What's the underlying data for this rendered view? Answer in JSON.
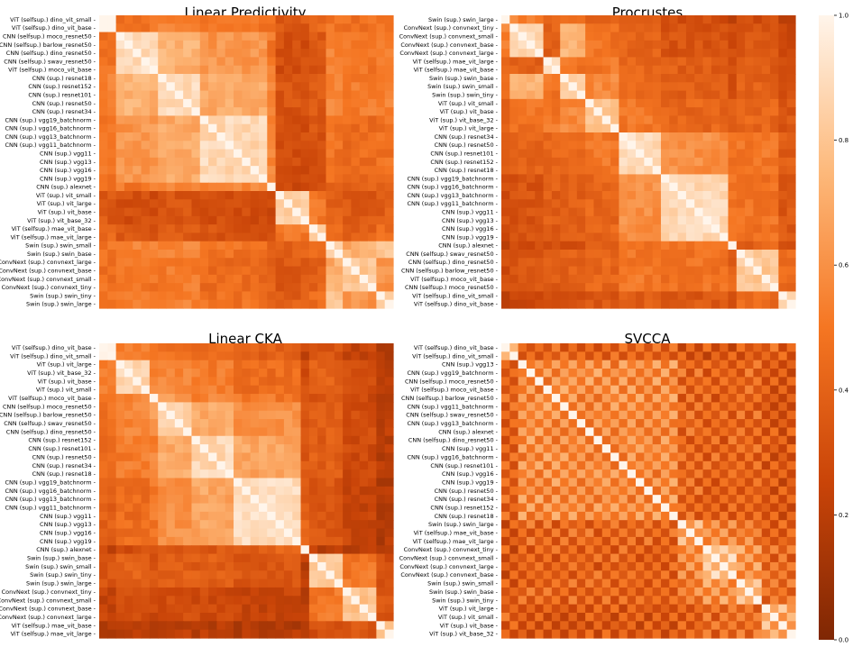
{
  "chart_data": [
    {
      "type": "heatmap",
      "title": "Linear Predictivity",
      "row_labels": [
        "ViT (selfsup.) dino_vit_small",
        "ViT (selfsup.) dino_vit_base",
        "CNN (selfsup.) moco_resnet50",
        "CNN (selfsup.) barlow_resnet50",
        "CNN (selfsup.) dino_resnet50",
        "CNN (selfsup.) swav_resnet50",
        "ViT (selfsup.) moco_vit_base",
        "CNN (sup.) resnet18",
        "CNN (sup.) resnet152",
        "CNN (sup.) resnet101",
        "CNN (sup.) resnet50",
        "CNN (sup.) resnet34",
        "CNN (sup.) vgg19_batchnorm",
        "CNN (sup.) vgg16_batchnorm",
        "CNN (sup.) vgg13_batchnorm",
        "CNN (sup.) vgg11_batchnorm",
        "CNN (sup.) vgg11",
        "CNN (sup.) vgg13",
        "CNN (sup.) vgg16",
        "CNN (sup.) vgg19",
        "CNN (sup.) alexnet",
        "ViT (sup.) vit_small",
        "ViT (sup.) vit_large",
        "ViT (sup.) vit_base",
        "ViT (sup.) vit_base_32",
        "ViT (selfsup.) mae_vit_base",
        "ViT (selfsup.) mae_vit_large",
        "Swin (sup.) swin_small",
        "Swin (sup.) swin_base",
        "ConvNext (sup.) convnext_large",
        "ConvNext (sup.) convnext_base",
        "ConvNext (sup.) convnext_small",
        "ConvNext (sup.) convnext_tiny",
        "Swin (sup.) swin_tiny",
        "Swin (sup.) swin_large"
      ],
      "groups": [
        2,
        5,
        5,
        8,
        1,
        4,
        2,
        2,
        4,
        2
      ],
      "group_values": [
        [
          0.97,
          0.48,
          0.55,
          0.5,
          0.46,
          0.36,
          0.45,
          0.5,
          0.48,
          0.52
        ],
        [
          0.48,
          0.9,
          0.72,
          0.62,
          0.5,
          0.3,
          0.35,
          0.55,
          0.5,
          0.55
        ],
        [
          0.55,
          0.72,
          0.9,
          0.7,
          0.55,
          0.33,
          0.37,
          0.55,
          0.52,
          0.55
        ],
        [
          0.5,
          0.62,
          0.7,
          0.88,
          0.55,
          0.3,
          0.33,
          0.48,
          0.45,
          0.48
        ],
        [
          0.46,
          0.5,
          0.55,
          0.55,
          1.0,
          0.28,
          0.3,
          0.42,
          0.4,
          0.42
        ],
        [
          0.36,
          0.3,
          0.33,
          0.3,
          0.28,
          0.82,
          0.5,
          0.4,
          0.35,
          0.38
        ],
        [
          0.45,
          0.35,
          0.37,
          0.33,
          0.3,
          0.5,
          0.85,
          0.45,
          0.4,
          0.45
        ],
        [
          0.5,
          0.55,
          0.55,
          0.48,
          0.42,
          0.4,
          0.45,
          0.88,
          0.7,
          0.8
        ],
        [
          0.48,
          0.5,
          0.52,
          0.45,
          0.4,
          0.35,
          0.4,
          0.7,
          0.8,
          0.62
        ],
        [
          0.52,
          0.55,
          0.55,
          0.48,
          0.42,
          0.38,
          0.45,
          0.8,
          0.62,
          0.85
        ]
      ],
      "colorbar": {
        "min": 0.0,
        "max": 1.0,
        "ticks": [
          "0.0",
          "0.2",
          "0.4",
          "0.6",
          "0.8",
          "1.0"
        ]
      }
    },
    {
      "type": "heatmap",
      "title": "Procrustes",
      "row_labels": [
        "Swin (sup.) swin_large",
        "ConvNext (sup.) convnext_tiny",
        "ConvNext (sup.) convnext_small",
        "ConvNext (sup.) convnext_base",
        "ConvNext (sup.) convnext_large",
        "ViT (selfsup.) mae_vit_large",
        "ViT (selfsup.) mae_vit_base",
        "Swin (sup.) swin_base",
        "Swin (sup.) swin_small",
        "Swin (sup.) swin_tiny",
        "ViT (sup.) vit_small",
        "ViT (sup.) vit_base",
        "ViT (sup.) vit_base_32",
        "ViT (sup.) vit_large",
        "CNN (sup.) resnet34",
        "CNN (sup.) resnet50",
        "CNN (sup.) resnet101",
        "CNN (sup.) resnet152",
        "CNN (sup.) resnet18",
        "CNN (sup.) vgg19_batchnorm",
        "CNN (sup.) vgg16_batchnorm",
        "CNN (sup.) vgg13_batchnorm",
        "CNN (sup.) vgg11_batchnorm",
        "CNN (sup.) vgg11",
        "CNN (sup.) vgg13",
        "CNN (sup.) vgg16",
        "CNN (sup.) vgg19",
        "CNN (sup.) alexnet",
        "CNN (selfsup.) swav_resnet50",
        "CNN (selfsup.) dino_resnet50",
        "CNN (selfsup.) barlow_resnet50",
        "ViT (selfsup.) moco_vit_base",
        "CNN (selfsup.) moco_resnet50",
        "ViT (selfsup.) dino_vit_small",
        "ViT (selfsup.) dino_vit_base"
      ],
      "groups": [
        1,
        4,
        2,
        3,
        4,
        5,
        8,
        1,
        5,
        2
      ],
      "group_values": [
        [
          1.0,
          0.55,
          0.4,
          0.5,
          0.42,
          0.35,
          0.3,
          0.25,
          0.3,
          0.25
        ],
        [
          0.55,
          0.88,
          0.4,
          0.72,
          0.48,
          0.4,
          0.33,
          0.28,
          0.35,
          0.28
        ],
        [
          0.4,
          0.4,
          0.85,
          0.48,
          0.5,
          0.42,
          0.38,
          0.3,
          0.38,
          0.32
        ],
        [
          0.5,
          0.72,
          0.48,
          0.85,
          0.58,
          0.45,
          0.38,
          0.3,
          0.4,
          0.33
        ],
        [
          0.42,
          0.48,
          0.5,
          0.58,
          0.82,
          0.5,
          0.42,
          0.35,
          0.42,
          0.35
        ],
        [
          0.35,
          0.4,
          0.42,
          0.45,
          0.5,
          0.9,
          0.6,
          0.45,
          0.5,
          0.38
        ],
        [
          0.3,
          0.33,
          0.38,
          0.38,
          0.42,
          0.6,
          0.88,
          0.5,
          0.48,
          0.35
        ],
        [
          0.25,
          0.28,
          0.3,
          0.3,
          0.35,
          0.45,
          0.5,
          1.0,
          0.4,
          0.28
        ],
        [
          0.3,
          0.35,
          0.38,
          0.4,
          0.42,
          0.5,
          0.48,
          0.4,
          0.8,
          0.45
        ],
        [
          0.25,
          0.28,
          0.32,
          0.33,
          0.35,
          0.38,
          0.35,
          0.28,
          0.45,
          0.88
        ]
      ]
    },
    {
      "type": "heatmap",
      "title": "Linear CKA",
      "row_labels": [
        "ViT (selfsup.) dino_vit_base",
        "ViT (selfsup.) dino_vit_small",
        "ViT (sup.) vit_large",
        "ViT (sup.) vit_base_32",
        "ViT (sup.) vit_base",
        "ViT (sup.) vit_small",
        "ViT (selfsup.) moco_vit_base",
        "CNN (selfsup.) moco_resnet50",
        "CNN (selfsup.) barlow_resnet50",
        "CNN (selfsup.) swav_resnet50",
        "CNN (selfsup.) dino_resnet50",
        "CNN (sup.) resnet152",
        "CNN (sup.) resnet101",
        "CNN (sup.) resnet50",
        "CNN (sup.) resnet34",
        "CNN (sup.) resnet18",
        "CNN (sup.) vgg19_batchnorm",
        "CNN (sup.) vgg16_batchnorm",
        "CNN (sup.) vgg13_batchnorm",
        "CNN (sup.) vgg11_batchnorm",
        "CNN (sup.) vgg11",
        "CNN (sup.) vgg13",
        "CNN (sup.) vgg16",
        "CNN (sup.) vgg19",
        "CNN (sup.) alexnet",
        "Swin (sup.) swin_base",
        "Swin (sup.) swin_small",
        "Swin (sup.) swin_tiny",
        "Swin (sup.) swin_large",
        "ConvNext (sup.) convnext_tiny",
        "ConvNext (sup.) convnext_small",
        "ConvNext (sup.) convnext_base",
        "ConvNext (sup.) convnext_large",
        "ViT (selfsup.) mae_vit_base",
        "ViT (selfsup.) mae_vit_large"
      ],
      "groups": [
        2,
        4,
        1,
        4,
        5,
        8,
        1,
        4,
        4,
        2
      ],
      "group_values": [
        [
          0.95,
          0.55,
          0.45,
          0.48,
          0.45,
          0.4,
          0.25,
          0.35,
          0.25,
          0.2
        ],
        [
          0.55,
          0.88,
          0.55,
          0.55,
          0.52,
          0.45,
          0.3,
          0.4,
          0.3,
          0.22
        ],
        [
          0.45,
          0.55,
          1.0,
          0.65,
          0.55,
          0.5,
          0.3,
          0.35,
          0.28,
          0.2
        ],
        [
          0.48,
          0.55,
          0.65,
          0.88,
          0.7,
          0.6,
          0.35,
          0.38,
          0.3,
          0.22
        ],
        [
          0.45,
          0.52,
          0.55,
          0.7,
          0.88,
          0.68,
          0.35,
          0.38,
          0.28,
          0.2
        ],
        [
          0.4,
          0.45,
          0.5,
          0.6,
          0.68,
          0.9,
          0.4,
          0.35,
          0.25,
          0.18
        ],
        [
          0.25,
          0.3,
          0.3,
          0.35,
          0.35,
          0.4,
          1.0,
          0.2,
          0.18,
          0.15
        ],
        [
          0.35,
          0.4,
          0.35,
          0.38,
          0.38,
          0.35,
          0.2,
          0.82,
          0.5,
          0.3
        ],
        [
          0.25,
          0.3,
          0.28,
          0.3,
          0.28,
          0.25,
          0.18,
          0.5,
          0.78,
          0.35
        ],
        [
          0.2,
          0.22,
          0.2,
          0.22,
          0.2,
          0.18,
          0.15,
          0.3,
          0.35,
          0.8
        ]
      ]
    },
    {
      "type": "heatmap",
      "title": "SVCCA",
      "row_labels": [
        "ViT (selfsup.) dino_vit_base",
        "ViT (selfsup.) dino_vit_small",
        "CNN (sup.) vgg13",
        "CNN (sup.) vgg19_batchnorm",
        "CNN (selfsup.) moco_resnet50",
        "ViT (selfsup.) moco_vit_base",
        "CNN (selfsup.) barlow_resnet50",
        "CNN (sup.) vgg11_batchnorm",
        "CNN (selfsup.) swav_resnet50",
        "CNN (sup.) vgg13_batchnorm",
        "CNN (sup.) alexnet",
        "CNN (selfsup.) dino_resnet50",
        "CNN (sup.) vgg11",
        "CNN (sup.) vgg16_batchnorm",
        "CNN (sup.) resnet101",
        "CNN (sup.) vgg16",
        "CNN (sup.) vgg19",
        "CNN (sup.) resnet50",
        "CNN (sup.) resnet34",
        "CNN (sup.) resnet152",
        "CNN (sup.) resnet18",
        "Swin (sup.) swin_large",
        "ViT (selfsup.) mae_vit_base",
        "ViT (selfsup.) mae_vit_large",
        "ConvNext (sup.) convnext_tiny",
        "ConvNext (sup.) convnext_small",
        "ConvNext (sup.) convnext_large",
        "ConvNext (sup.) convnext_base",
        "Swin (sup.) swin_small",
        "Swin (sup.) swin_base",
        "Swin (sup.) swin_tiny",
        "ViT (sup.) vit_large",
        "ViT (sup.) vit_small",
        "ViT (sup.) vit_base",
        "ViT (sup.) vit_base_32"
      ],
      "groups": [
        2,
        19,
        3,
        4,
        3,
        4
      ],
      "group_values": [
        [
          0.8,
          0.4,
          0.35,
          0.35,
          0.38,
          0.4
        ],
        [
          0.4,
          0.58,
          0.42,
          0.4,
          0.42,
          0.35
        ],
        [
          0.35,
          0.42,
          0.7,
          0.55,
          0.52,
          0.4
        ],
        [
          0.35,
          0.4,
          0.55,
          0.82,
          0.62,
          0.42
        ],
        [
          0.38,
          0.42,
          0.52,
          0.62,
          0.75,
          0.45
        ],
        [
          0.4,
          0.35,
          0.4,
          0.42,
          0.45,
          0.72
        ]
      ]
    }
  ],
  "colors": {
    "low": "#7f2704",
    "mid": "#f57622",
    "high": "#fff5eb"
  }
}
